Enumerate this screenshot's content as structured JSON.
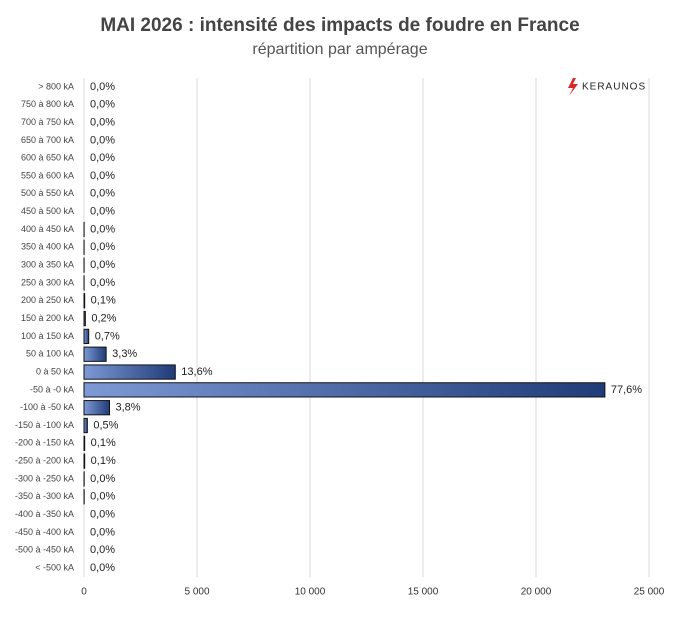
{
  "chart_data": {
    "type": "bar",
    "orientation": "horizontal",
    "title": "MAI 2026 : intensité des impacts de foudre en France",
    "subtitle": "répartition par ampérage",
    "logo": "KERAUNOS",
    "categories": [
      "> 800 kA",
      "750 à 800 kA",
      "700 à 750 kA",
      "650 à 700 kA",
      "600 à 650 kA",
      "550 à 600 kA",
      "500 à 550 kA",
      "450 à 500 kA",
      "400 à 450 kA",
      "350 à 400 kA",
      "300 à 350 kA",
      "250 à 300 kA",
      "200 à 250 kA",
      "150 à 200 kA",
      "100 à 150 kA",
      "50 à 100 kA",
      "0 à 50 kA",
      "-50 à -0 kA",
      "-100 à -50 kA",
      "-150 à -100 kA",
      "-200 à -150 kA",
      "-250 à -200 kA",
      "-300 à -250 kA",
      "-350 à -300 kA",
      "-400 à -350 kA",
      "-450 à -400 kA",
      "-500 à -450 kA",
      "< -500 kA"
    ],
    "values": [
      0,
      0,
      0,
      0,
      0,
      0,
      0,
      0,
      5,
      5,
      5,
      5,
      30,
      60,
      208,
      980,
      4039,
      23047,
      1129,
      149,
      30,
      30,
      8,
      8,
      0,
      0,
      0,
      0
    ],
    "shares": [
      0.0,
      0.0,
      0.0,
      0.0,
      0.0,
      0.0,
      0.0,
      0.0,
      0.0,
      0.0,
      0.0,
      0.0,
      0.1,
      0.2,
      0.7,
      3.3,
      13.6,
      77.6,
      3.8,
      0.5,
      0.1,
      0.1,
      0.0,
      0.0,
      0.0,
      0.0,
      0.0,
      0.0
    ],
    "share_labels": [
      "0,0%",
      "0,0%",
      "0,0%",
      "0,0%",
      "0,0%",
      "0,0%",
      "0,0%",
      "0,0%",
      "0,0%",
      "0,0%",
      "0,0%",
      "0,0%",
      "0,1%",
      "0,2%",
      "0,7%",
      "3,3%",
      "13,6%",
      "77,6%",
      "3,8%",
      "0,5%",
      "0,1%",
      "0,1%",
      "0,0%",
      "0,0%",
      "0,0%",
      "0,0%",
      "0,0%",
      "0,0%"
    ],
    "color": "#2f4f8f",
    "xlim": [
      0,
      25000
    ],
    "xticks": [
      0,
      {
        "value": 5000,
        "label": "5 000"
      },
      {
        "value": 10000,
        "label": "10 000"
      },
      {
        "value": 15000,
        "label": "15 000"
      },
      {
        "value": 20000,
        "label": "20 000"
      },
      {
        "value": 25000,
        "label": "25 000"
      }
    ],
    "grid": true
  }
}
